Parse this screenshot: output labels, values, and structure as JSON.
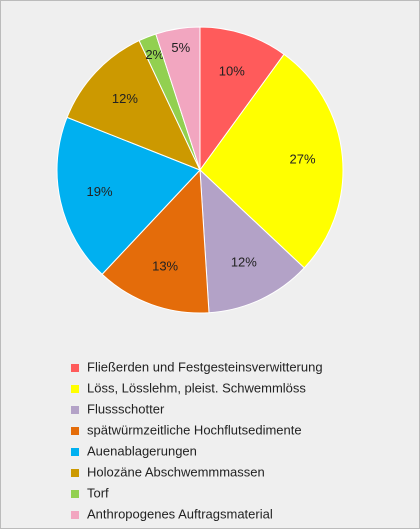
{
  "chart_data": {
    "type": "pie",
    "categories": [
      "Fließerden und Festgesteinsverwitterung",
      "Löss, Lösslehm, pleist. Schwemmlöss",
      "Flussschotter",
      "spätwürmzeitliche Hochflutsedimente",
      "Auenablagerungen",
      "Holozäne Abschwemmmassen",
      "Torf",
      "Anthropogenes Auftragsmaterial"
    ],
    "values": [
      10,
      27,
      12,
      13,
      19,
      12,
      2,
      5
    ],
    "value_labels": [
      "10%",
      "27%",
      "12%",
      "13%",
      "19%",
      "12%",
      "2%",
      "5%"
    ],
    "colors": [
      "#ff5b5b",
      "#ffff00",
      "#b3a2c7",
      "#e46c0a",
      "#00b0f0",
      "#cc9900",
      "#92d050",
      "#f2a6c0"
    ]
  }
}
